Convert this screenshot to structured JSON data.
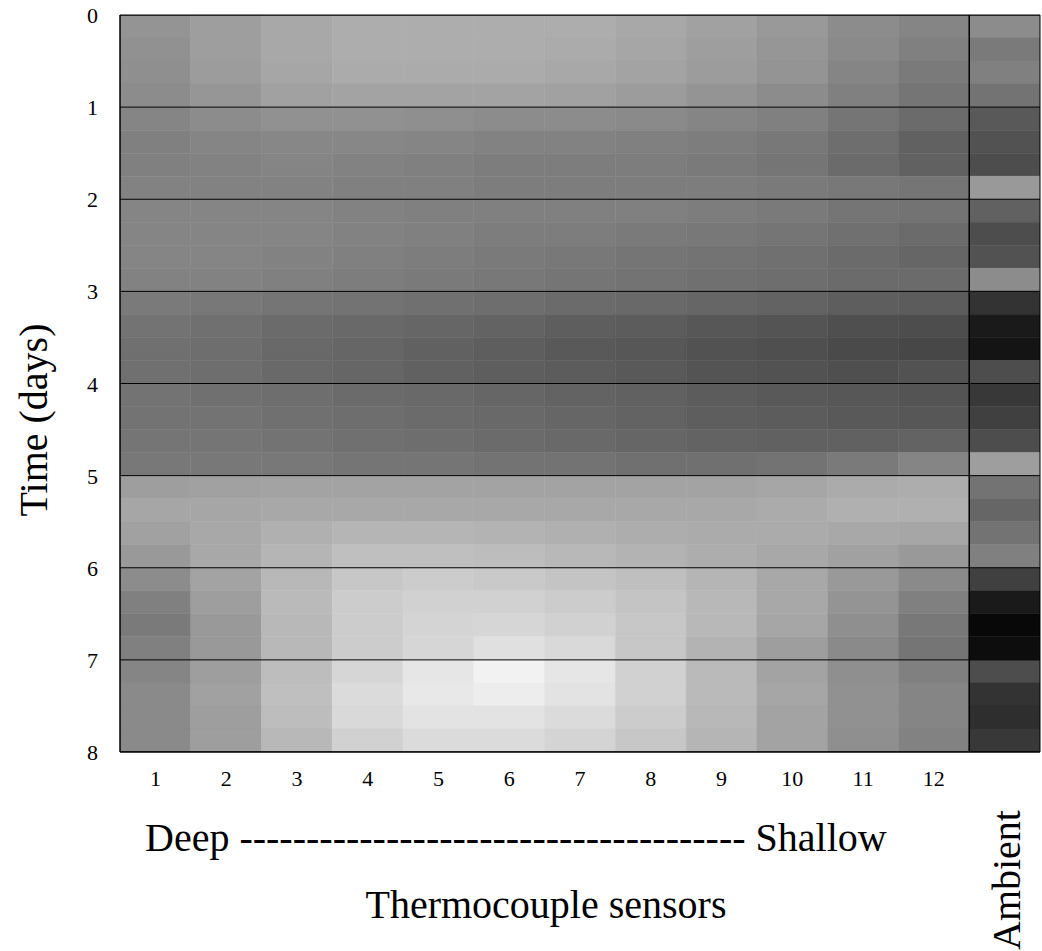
{
  "chart_data": {
    "type": "heatmap",
    "x_label": "Thermocouple sensors",
    "y_label": "Time (days)",
    "annotations": [
      "Deep -------------------------------------- Shallow"
    ],
    "xlim": [
      0.5,
      13.5
    ],
    "xticks": [
      1,
      2,
      3,
      4,
      5,
      6,
      7,
      8,
      9,
      10,
      11,
      12,
      {
        "value": 13,
        "label": "Ambient"
      }
    ],
    "ylim": [
      0,
      8
    ],
    "yticks": [
      0,
      1,
      2,
      3,
      4,
      5,
      6,
      7,
      8
    ],
    "grid": true,
    "zlim": [
      0,
      100
    ],
    "y_edges": [
      0,
      0.25,
      0.5,
      0.75,
      1,
      1.25,
      1.5,
      1.75,
      2,
      2.25,
      2.5,
      2.75,
      3,
      3.25,
      3.5,
      3.75,
      4,
      4.25,
      4.5,
      4.75,
      5,
      5.25,
      5.5,
      5.75,
      6,
      6.25,
      6.5,
      6.75,
      7,
      7.25,
      7.5,
      7.75,
      8
    ],
    "cells": [
      [
        58,
        62,
        66,
        68,
        68,
        68,
        68,
        66,
        63,
        60,
        55,
        52,
        55
      ],
      [
        57,
        62,
        66,
        68,
        68,
        68,
        67,
        65,
        62,
        59,
        54,
        50,
        48
      ],
      [
        56,
        61,
        65,
        67,
        67,
        67,
        66,
        64,
        61,
        58,
        52,
        48,
        50
      ],
      [
        55,
        59,
        63,
        64,
        64,
        64,
        63,
        61,
        58,
        55,
        50,
        46,
        45
      ],
      [
        52,
        55,
        57,
        57,
        56,
        55,
        55,
        54,
        52,
        50,
        46,
        42,
        35
      ],
      [
        50,
        52,
        53,
        53,
        52,
        51,
        51,
        50,
        49,
        47,
        43,
        38,
        32
      ],
      [
        50,
        51,
        52,
        51,
        50,
        49,
        49,
        49,
        48,
        46,
        42,
        38,
        30
      ],
      [
        51,
        51,
        51,
        50,
        50,
        49,
        49,
        49,
        49,
        48,
        47,
        46,
        60
      ],
      [
        52,
        52,
        52,
        51,
        50,
        50,
        50,
        50,
        49,
        48,
        46,
        45,
        38
      ],
      [
        52,
        52,
        52,
        51,
        50,
        49,
        49,
        48,
        47,
        46,
        44,
        42,
        30
      ],
      [
        52,
        52,
        51,
        50,
        49,
        48,
        47,
        46,
        45,
        44,
        42,
        40,
        32
      ],
      [
        51,
        51,
        50,
        49,
        48,
        47,
        46,
        45,
        44,
        43,
        42,
        42,
        55
      ],
      [
        48,
        47,
        46,
        45,
        44,
        43,
        42,
        41,
        40,
        39,
        37,
        36,
        20
      ],
      [
        45,
        44,
        42,
        41,
        40,
        39,
        37,
        36,
        34,
        33,
        31,
        30,
        10
      ],
      [
        44,
        43,
        41,
        40,
        38,
        37,
        35,
        34,
        32,
        31,
        29,
        28,
        8
      ],
      [
        44,
        43,
        41,
        40,
        38,
        37,
        36,
        35,
        33,
        32,
        31,
        32,
        30
      ],
      [
        45,
        44,
        43,
        42,
        41,
        40,
        39,
        38,
        36,
        35,
        34,
        33,
        22
      ],
      [
        45,
        45,
        44,
        43,
        42,
        41,
        40,
        39,
        37,
        36,
        35,
        34,
        25
      ],
      [
        46,
        46,
        45,
        44,
        43,
        42,
        41,
        40,
        39,
        38,
        38,
        39,
        30
      ],
      [
        47,
        47,
        47,
        46,
        46,
        45,
        45,
        44,
        44,
        45,
        48,
        52,
        62
      ],
      [
        62,
        63,
        64,
        64,
        64,
        64,
        64,
        64,
        64,
        65,
        67,
        68,
        45
      ],
      [
        65,
        65,
        66,
        66,
        66,
        66,
        66,
        66,
        66,
        67,
        69,
        69,
        40
      ],
      [
        63,
        66,
        69,
        71,
        71,
        70,
        69,
        68,
        67,
        67,
        66,
        65,
        45
      ],
      [
        60,
        66,
        71,
        75,
        75,
        74,
        72,
        70,
        68,
        66,
        63,
        60,
        50
      ],
      [
        55,
        64,
        72,
        78,
        80,
        79,
        77,
        75,
        71,
        66,
        60,
        54,
        25
      ],
      [
        50,
        62,
        73,
        80,
        82,
        82,
        80,
        77,
        72,
        66,
        58,
        50,
        10
      ],
      [
        48,
        60,
        72,
        80,
        83,
        84,
        82,
        78,
        72,
        65,
        56,
        47,
        3
      ],
      [
        50,
        60,
        72,
        80,
        84,
        88,
        85,
        78,
        70,
        62,
        54,
        46,
        5
      ],
      [
        52,
        62,
        74,
        84,
        90,
        95,
        90,
        82,
        73,
        64,
        56,
        50,
        30
      ],
      [
        54,
        63,
        75,
        86,
        91,
        93,
        89,
        82,
        73,
        65,
        57,
        52,
        20
      ],
      [
        54,
        62,
        74,
        85,
        89,
        89,
        86,
        80,
        72,
        64,
        57,
        52,
        18
      ],
      [
        54,
        62,
        72,
        82,
        86,
        86,
        83,
        78,
        71,
        64,
        56,
        51,
        22
      ]
    ]
  }
}
